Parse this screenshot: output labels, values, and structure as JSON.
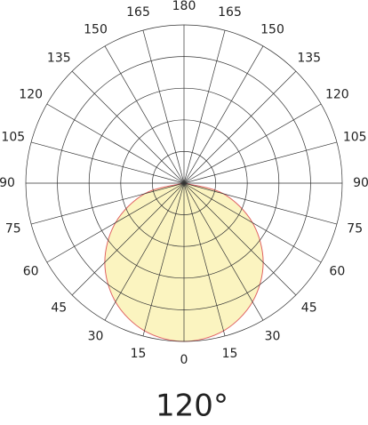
{
  "chart_data": {
    "type": "polar",
    "caption": "120°",
    "angle_ticks": [
      0,
      15,
      30,
      45,
      60,
      75,
      90,
      105,
      120,
      135,
      150,
      165,
      180
    ],
    "rlim": [
      0,
      5
    ],
    "rticks": [
      1,
      2,
      3,
      4,
      5
    ],
    "grid": true,
    "series": [
      {
        "color": "#e06464",
        "fill": "#fbf4c0",
        "angles": [
          -90,
          -75,
          -60,
          -45,
          -30,
          -15,
          0,
          15,
          30,
          45,
          60,
          75,
          90
        ],
        "values": [
          0,
          1.29,
          2.5,
          3.54,
          4.33,
          4.83,
          5,
          4.83,
          4.33,
          3.54,
          2.5,
          1.29,
          0
        ]
      }
    ]
  }
}
